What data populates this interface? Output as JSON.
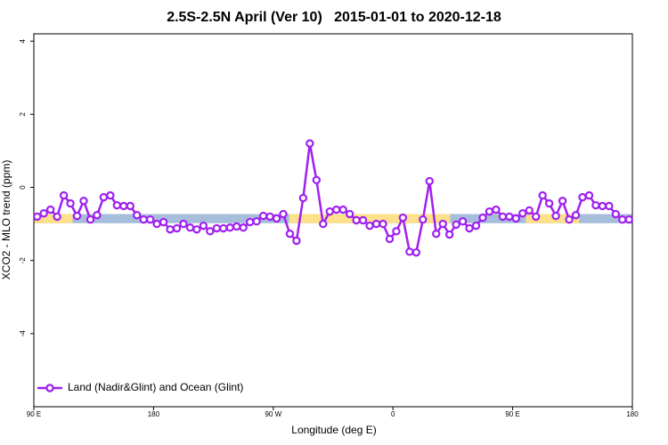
{
  "chart_data": {
    "type": "line",
    "title": "2.5S-2.5N April (Ver 10)   2015-01-01 to 2020-12-18",
    "xlabel": "Longitude (deg E)",
    "ylabel": "XCO2 - MLO trend (ppm)",
    "xlim": [
      90,
      540
    ],
    "xticks": [
      {
        "value": 90,
        "label": "90 E"
      },
      180,
      {
        "value": 270,
        "label": "90 W"
      },
      {
        "value": 360,
        "label": "0"
      },
      {
        "value": 450,
        "label": "90 E"
      },
      {
        "value": 540,
        "label": "180"
      }
    ],
    "ylim": [
      -6,
      4.2
    ],
    "yticks": [
      -4,
      -2,
      0,
      2,
      4
    ],
    "legend": "bottom-left",
    "bands": [
      {
        "x": [
          90,
          540
        ],
        "y": [
          -0.98,
          -0.73
        ],
        "color": "#a6bddb"
      },
      {
        "x": [
          90,
          119
        ],
        "y": [
          -0.98,
          -0.73
        ],
        "color": "#fde08a"
      },
      {
        "x": [
          282,
          403
        ],
        "y": [
          -0.98,
          -0.73
        ],
        "color": "#fde08a"
      },
      {
        "x": [
          460,
          500
        ],
        "y": [
          -0.98,
          -0.73
        ],
        "color": "#fde08a"
      }
    ],
    "x": [
      92.5,
      97.5,
      102.5,
      107.5,
      112.5,
      117.5,
      122.5,
      127.5,
      132.5,
      137.5,
      142.5,
      147.5,
      152.5,
      157.5,
      162.5,
      167.5,
      172.5,
      177.5,
      182.5,
      187.5,
      192.5,
      197.5,
      202.5,
      207.5,
      212.5,
      217.5,
      222.5,
      227.5,
      232.5,
      237.5,
      242.5,
      247.5,
      252.5,
      257.5,
      262.5,
      267.5,
      272.5,
      277.5,
      282.5,
      287.5,
      292.5,
      297.5,
      302.5,
      307.5,
      312.5,
      317.5,
      322.5,
      327.5,
      332.5,
      337.5,
      342.5,
      347.5,
      352.5,
      357.5,
      362.5,
      367.5,
      372.5,
      377.5,
      382.5,
      387.5,
      392.5,
      397.5,
      402.5,
      407.5,
      412.5,
      417.5,
      422.5,
      427.5,
      432.5,
      437.5,
      442.5,
      447.5,
      452.5,
      457.5,
      462.5,
      467.5,
      472.5,
      477.5,
      482.5,
      487.5,
      492.5,
      497.5,
      502.5,
      507.5,
      512.5,
      517.5,
      522.5,
      527.5,
      532.5,
      537.5
    ],
    "series": [
      {
        "name": "Land (Nadir&Glint) and Ocean (Glint)",
        "color": "#a020f0",
        "values": [
          -0.8,
          -0.71,
          -0.61,
          -0.8,
          -0.22,
          -0.44,
          -0.78,
          -0.37,
          -0.88,
          -0.76,
          -0.27,
          -0.22,
          -0.49,
          -0.51,
          -0.51,
          -0.76,
          -0.88,
          -0.88,
          -1.0,
          -0.95,
          -1.15,
          -1.12,
          -1.0,
          -1.1,
          -1.15,
          -1.05,
          -1.2,
          -1.12,
          -1.12,
          -1.1,
          -1.07,
          -1.1,
          -0.95,
          -0.93,
          -0.78,
          -0.8,
          -0.85,
          -0.73,
          -1.27,
          -1.46,
          -0.29,
          1.2,
          0.2,
          -1.0,
          -0.66,
          -0.61,
          -0.61,
          -0.73,
          -0.9,
          -0.9,
          -1.05,
          -1.0,
          -1.0,
          -1.41,
          -1.2,
          -0.83,
          -1.76,
          -1.78,
          -0.88,
          0.17,
          -1.27,
          -1.0,
          -1.29,
          -1.02,
          -0.93,
          -1.12,
          -1.05,
          -0.83,
          -0.66,
          -0.61,
          -0.8,
          -0.8,
          -0.85,
          -0.71,
          -0.63,
          -0.8,
          -0.22,
          -0.44,
          -0.78,
          -0.37,
          -0.88,
          -0.76,
          -0.27,
          -0.22,
          -0.49,
          -0.51,
          -0.51,
          -0.73,
          -0.88,
          -0.88
        ]
      }
    ]
  }
}
